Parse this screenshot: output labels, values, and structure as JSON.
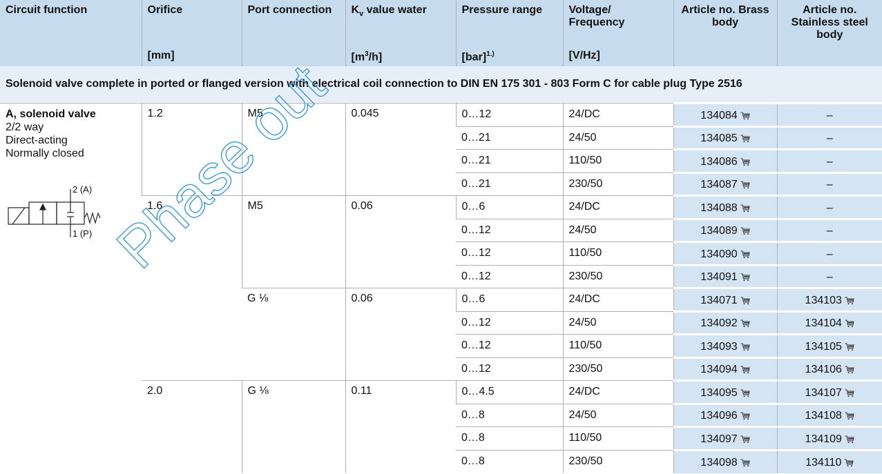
{
  "header": {
    "circuit": "Circuit function",
    "orifice": "Orifice",
    "port": "Port connection",
    "kv": {
      "main": "K",
      "sub": "v",
      "rest": " value water"
    },
    "pressure": "Pressure range",
    "voltage": "Voltage/ Frequency",
    "brass": "Article no. Brass body",
    "stainless": "Article no. Stainless steel body",
    "units": {
      "orifice": "[mm]",
      "kv": {
        "main": "[m",
        "sup": "3",
        "rest": "/h]"
      },
      "pressure": {
        "main": "[bar]",
        "sup": "1.)"
      },
      "voltage": "[V/Hz]"
    }
  },
  "section": "Solenoid valve complete in ported or flanged version with electrical coil connection to DIN EN 175 301 - 803 Form C for cable plug Type 2516",
  "circuit": {
    "title": "A, solenoid valve",
    "lines": [
      "2/2 way",
      "Direct-acting",
      "Normally closed"
    ],
    "port_a": "2 (A)",
    "port_p": "1 (P)"
  },
  "groups": [
    {
      "orifice": "1.2",
      "ports": [
        {
          "port": "M5",
          "kv": 0.045,
          "rows": [
            [
              "0…12",
              "24/DC",
              134084,
              "–"
            ],
            [
              "0…21",
              "24/50",
              134085,
              "–"
            ],
            [
              "0…21",
              "110/50",
              134086,
              "–"
            ],
            [
              "0…21",
              "230/50",
              134087,
              "–"
            ]
          ]
        }
      ]
    },
    {
      "orifice": "1.6",
      "ports": [
        {
          "port": "M5",
          "kv": 0.06,
          "rows": [
            [
              "0…6",
              "24/DC",
              134088,
              "–"
            ],
            [
              "0…12",
              "24/50",
              134089,
              "–"
            ],
            [
              "0…12",
              "110/50",
              134090,
              "–"
            ],
            [
              "0…12",
              "230/50",
              134091,
              "–"
            ]
          ]
        },
        {
          "port": "G ⅛",
          "kv": 0.06,
          "rows": [
            [
              "0…6",
              "24/DC",
              134071,
              134103
            ],
            [
              "0…12",
              "24/50",
              134092,
              134104
            ],
            [
              "0…12",
              "110/50",
              134093,
              134105
            ],
            [
              "0…12",
              "230/50",
              134094,
              134106
            ]
          ]
        }
      ]
    },
    {
      "orifice": "2.0",
      "ports": [
        {
          "port": "G ⅛",
          "kv": 0.11,
          "rows": [
            [
              "0…4.5",
              "24/DC",
              134095,
              134107
            ],
            [
              "0…8",
              "24/50",
              134096,
              134108
            ],
            [
              "0…8",
              "110/50",
              134097,
              134109
            ],
            [
              "0…8",
              "230/50",
              134098,
              134110
            ]
          ]
        }
      ]
    }
  ],
  "watermark": "Phase out"
}
